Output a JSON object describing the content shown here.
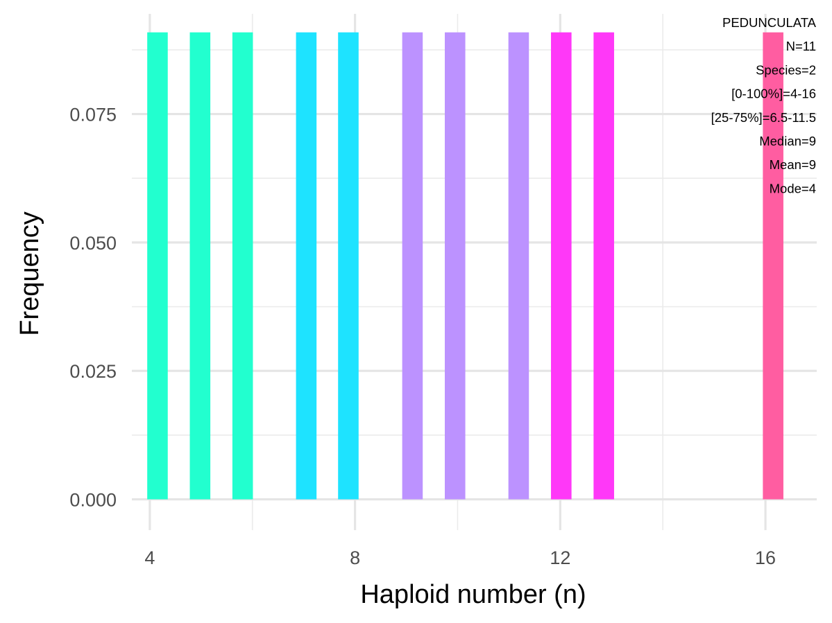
{
  "chart_data": {
    "type": "bar",
    "xlabel": "Haploid number (n)",
    "ylabel": "Frequency",
    "xlim": [
      3.65,
      17.0
    ],
    "ylim": [
      -0.006,
      0.0945
    ],
    "x_ticks": [
      4,
      8,
      12,
      16
    ],
    "x_minor_ticks": [
      6,
      10,
      14
    ],
    "y_ticks": [
      0.0,
      0.025,
      0.05,
      0.075
    ],
    "y_tick_labels": [
      "0.000",
      "0.025",
      "0.050",
      "0.075"
    ],
    "y_minor_ticks": [
      0.0125,
      0.0375,
      0.0625,
      0.0875
    ],
    "grid": true,
    "bar_width": 0.4,
    "bars": [
      {
        "x": 4.15,
        "value": 0.0909,
        "color": "#22FFCF"
      },
      {
        "x": 4.98,
        "value": 0.0909,
        "color": "#22FFCF"
      },
      {
        "x": 5.81,
        "value": 0.0909,
        "color": "#22FFCF"
      },
      {
        "x": 7.05,
        "value": 0.0909,
        "color": "#1EE3FF"
      },
      {
        "x": 7.87,
        "value": 0.0909,
        "color": "#1EE3FF"
      },
      {
        "x": 9.12,
        "value": 0.0909,
        "color": "#BC92FF"
      },
      {
        "x": 9.95,
        "value": 0.0909,
        "color": "#BC92FF"
      },
      {
        "x": 11.19,
        "value": 0.0909,
        "color": "#BC92FF"
      },
      {
        "x": 12.02,
        "value": 0.0909,
        "color": "#FF38F8"
      },
      {
        "x": 12.85,
        "value": 0.0909,
        "color": "#FF38F8"
      },
      {
        "x": 16.15,
        "value": 0.0909,
        "color": "#FF5DA1"
      }
    ],
    "annotations": [
      "PEDUNCULATA",
      "N=11",
      "Species=2",
      "[0-100%]=4-16",
      "[25-75%]=6.5-11.5",
      "Median=9",
      "Mean=9",
      "Mode=4"
    ],
    "annotation_placement": "top-right"
  }
}
